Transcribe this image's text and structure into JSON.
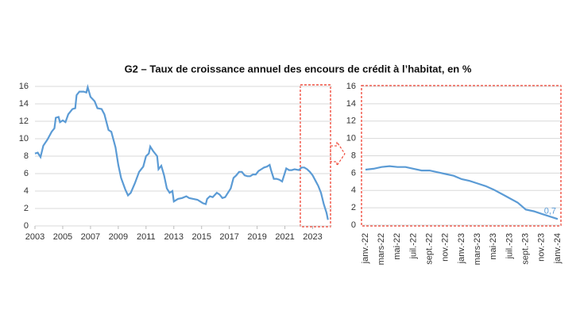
{
  "chart_data": [
    {
      "type": "line",
      "title": "G2 – Taux de croissance annuel des encours de crédit à l’habitat, en %",
      "x": [
        2003.0,
        2003.2,
        2003.4,
        2003.6,
        2003.9,
        2004.2,
        2004.4,
        2004.5,
        2004.7,
        2004.8,
        2005.0,
        2005.2,
        2005.4,
        2005.7,
        2005.9,
        2006.0,
        2006.2,
        2006.5,
        2006.7,
        2006.8,
        2007.0,
        2007.3,
        2007.5,
        2007.8,
        2008.0,
        2008.3,
        2008.5,
        2008.8,
        2009.0,
        2009.2,
        2009.5,
        2009.7,
        2009.9,
        2010.2,
        2010.5,
        2010.8,
        2011.0,
        2011.2,
        2011.3,
        2011.5,
        2011.8,
        2011.9,
        2012.1,
        2012.3,
        2012.5,
        2012.7,
        2012.9,
        2013.0,
        2013.3,
        2013.6,
        2013.9,
        2014.1,
        2014.4,
        2014.7,
        2014.9,
        2015.1,
        2015.3,
        2015.4,
        2015.6,
        2015.8,
        2016.1,
        2016.3,
        2016.5,
        2016.7,
        2016.9,
        2017.1,
        2017.3,
        2017.5,
        2017.7,
        2017.9,
        2018.1,
        2018.3,
        2018.5,
        2018.7,
        2018.9,
        2019.1,
        2019.3,
        2019.5,
        2019.7,
        2019.9,
        2020.0,
        2020.2,
        2020.4,
        2020.6,
        2020.8,
        2021.0,
        2021.1,
        2021.3,
        2021.5,
        2021.7,
        2022.0,
        2022.2,
        2022.4,
        2022.6,
        2022.8,
        2023.0,
        2023.2,
        2023.4,
        2023.6,
        2023.8,
        2024.0,
        2024.1
      ],
      "values": [
        8.3,
        8.4,
        7.9,
        9.2,
        9.9,
        10.8,
        11.2,
        12.4,
        12.5,
        11.9,
        12.1,
        11.9,
        12.8,
        13.4,
        13.5,
        15.0,
        15.4,
        15.4,
        15.3,
        15.9,
        14.8,
        14.3,
        13.5,
        13.4,
        12.8,
        11.0,
        10.8,
        9.0,
        7.0,
        5.5,
        4.2,
        3.5,
        3.8,
        4.9,
        6.2,
        6.8,
        8.0,
        8.3,
        9.1,
        8.6,
        8.0,
        6.5,
        6.9,
        5.8,
        4.3,
        3.8,
        4.0,
        2.8,
        3.1,
        3.2,
        3.4,
        3.2,
        3.1,
        3.0,
        2.8,
        2.6,
        2.5,
        3.1,
        3.4,
        3.3,
        3.8,
        3.6,
        3.2,
        3.3,
        3.8,
        4.3,
        5.5,
        5.8,
        6.2,
        6.2,
        5.8,
        5.7,
        5.7,
        5.9,
        5.9,
        6.3,
        6.5,
        6.7,
        6.8,
        7.0,
        6.4,
        5.4,
        5.4,
        5.3,
        5.1,
        6.1,
        6.6,
        6.4,
        6.4,
        6.5,
        6.4,
        6.7,
        6.7,
        6.5,
        6.2,
        5.8,
        5.2,
        4.6,
        3.8,
        2.5,
        1.5,
        0.7
      ],
      "color": "#5b9bd5",
      "xlim": [
        2003,
        2024.4
      ],
      "xticks": [
        2003,
        2005,
        2007,
        2009,
        2011,
        2013,
        2015,
        2017,
        2019,
        2021,
        2023
      ],
      "ylim": [
        0,
        16
      ],
      "yticks": [
        0,
        2,
        4,
        6,
        8,
        10,
        12,
        14,
        16
      ],
      "grid": true
    },
    {
      "type": "line",
      "categories": [
        "janv.-22",
        null,
        "mars-22",
        null,
        "mai-22",
        null,
        "juil.-22",
        null,
        "sept.-22",
        null,
        "nov.-22",
        null,
        "janv.-23",
        null,
        "mars-23",
        null,
        "mai-23",
        null,
        "juil.-23",
        null,
        "sept.-23",
        null,
        "nov.-23",
        null,
        "janv.-24"
      ],
      "values": [
        6.4,
        6.5,
        6.7,
        6.8,
        6.7,
        6.7,
        6.5,
        6.3,
        6.3,
        6.1,
        5.9,
        5.7,
        5.3,
        5.1,
        4.8,
        4.5,
        4.1,
        3.6,
        3.1,
        2.6,
        1.8,
        1.6,
        1.3,
        1.0,
        0.7
      ],
      "value_labels": [
        null,
        null,
        null,
        null,
        null,
        null,
        null,
        null,
        null,
        null,
        null,
        null,
        null,
        null,
        null,
        null,
        null,
        null,
        null,
        null,
        null,
        null,
        null,
        null,
        "0,7"
      ],
      "color": "#5b9bd5",
      "ylim": [
        0,
        16
      ],
      "yticks": [
        0,
        2,
        4,
        6,
        8,
        10,
        12,
        14,
        16
      ],
      "grid": true
    }
  ]
}
